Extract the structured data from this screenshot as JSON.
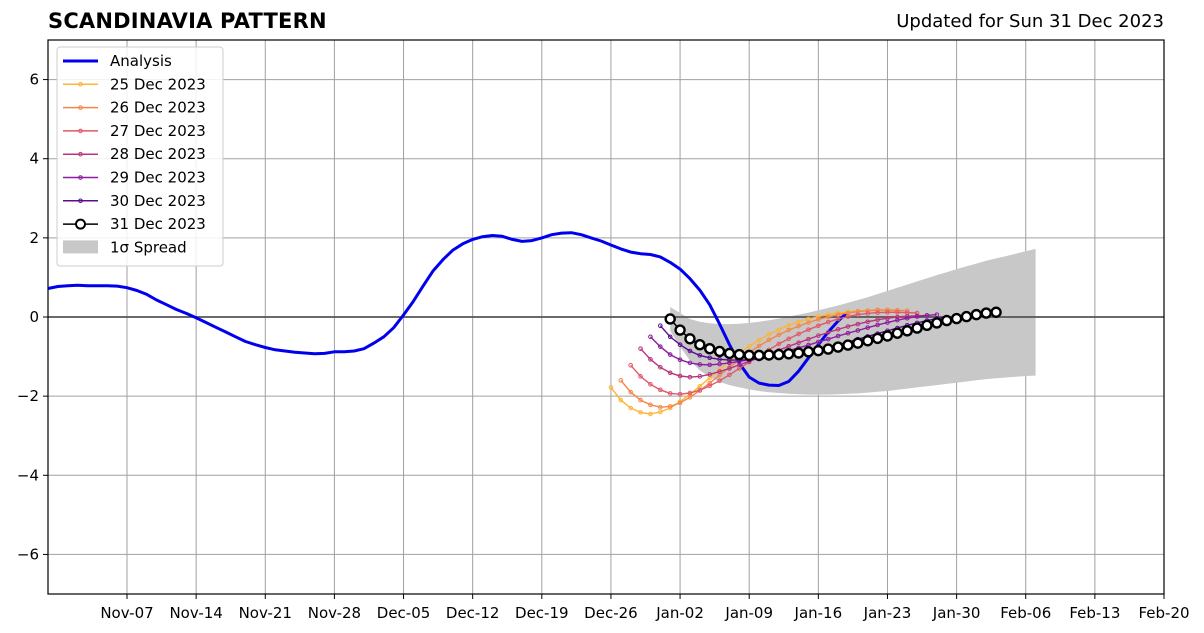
{
  "title": "SCANDINAVIA PATTERN",
  "updated": "Updated for Sun 31 Dec 2023",
  "chart_data": {
    "type": "line",
    "title": "SCANDINAVIA PATTERN",
    "subtitle": "Updated for Sun 31 Dec 2023",
    "x_axis": {
      "type": "date",
      "range": [
        "2023-10-30",
        "2024-02-20"
      ],
      "tick_labels": [
        "Nov-07",
        "Nov-14",
        "Nov-21",
        "Nov-28",
        "Dec-05",
        "Dec-12",
        "Dec-19",
        "Dec-26",
        "Jan-02",
        "Jan-09",
        "Jan-16",
        "Jan-23",
        "Jan-30",
        "Feb-06",
        "Feb-13",
        "Feb-20"
      ],
      "tick_dates": [
        "2023-11-07",
        "2023-11-14",
        "2023-11-21",
        "2023-11-28",
        "2023-12-05",
        "2023-12-12",
        "2023-12-19",
        "2023-12-26",
        "2024-01-02",
        "2024-01-09",
        "2024-01-16",
        "2024-01-23",
        "2024-01-30",
        "2024-02-06",
        "2024-02-13",
        "2024-02-20"
      ]
    },
    "y_axis": {
      "range": [
        -7,
        7
      ],
      "ticks": [
        -6,
        -4,
        -2,
        0,
        2,
        4,
        6
      ],
      "tick_labels": [
        "−6",
        "−4",
        "−2",
        "0",
        "2",
        "4",
        "6"
      ]
    },
    "grid": true,
    "zero_line": true,
    "legend": {
      "placement": "top-left"
    },
    "colors": {
      "analysis": "#0000ee",
      "spread": "#c8c8c8",
      "grid": "#a0a0a0",
      "d25": "#fcb536",
      "d26": "#f48649",
      "d27": "#e0586a",
      "d28": "#b8357c",
      "d29": "#8e1ba0",
      "d30": "#5a0c8c",
      "d31": "#000000"
    },
    "analysis": {
      "name": "Analysis",
      "start": "2023-10-30",
      "step_days": 1,
      "values": [
        0.72,
        0.77,
        0.79,
        0.8,
        0.79,
        0.79,
        0.79,
        0.78,
        0.74,
        0.67,
        0.57,
        0.43,
        0.31,
        0.19,
        0.09,
        -0.02,
        -0.14,
        -0.26,
        -0.38,
        -0.5,
        -0.62,
        -0.7,
        -0.77,
        -0.83,
        -0.86,
        -0.89,
        -0.91,
        -0.93,
        -0.92,
        -0.88,
        -0.88,
        -0.86,
        -0.8,
        -0.66,
        -0.5,
        -0.27,
        0.05,
        0.4,
        0.79,
        1.17,
        1.45,
        1.69,
        1.85,
        1.96,
        2.03,
        2.06,
        2.04,
        1.96,
        1.91,
        1.93,
        2.0,
        2.08,
        2.12,
        2.13,
        2.08,
        2.0,
        1.92,
        1.82,
        1.72,
        1.64,
        1.6,
        1.58,
        1.52,
        1.38,
        1.21,
        0.97,
        0.68,
        0.31,
        -0.18,
        -0.7,
        -1.17,
        -1.52,
        -1.67,
        -1.72,
        -1.73,
        -1.63,
        -1.37,
        -1.03,
        -0.7,
        -0.38,
        -0.1,
        0.13
      ]
    },
    "forecasts": [
      {
        "name": "25 Dec 2023",
        "color": "#fcb536",
        "start": "2023-12-26",
        "values": [
          -1.78,
          -2.1,
          -2.3,
          -2.41,
          -2.45,
          -2.4,
          -2.3,
          -2.14,
          -1.95,
          -1.75,
          -1.54,
          -1.33,
          -1.12,
          -0.92,
          -0.74,
          -0.58,
          -0.44,
          -0.32,
          -0.21,
          -0.12,
          -0.05,
          0.01,
          0.06,
          0.1,
          0.13,
          0.15,
          0.16,
          0.17,
          0.16,
          0.15
        ]
      },
      {
        "name": "26 Dec 2023",
        "color": "#f48649",
        "start": "2023-12-27",
        "values": [
          -1.6,
          -1.9,
          -2.1,
          -2.22,
          -2.28,
          -2.26,
          -2.17,
          -2.03,
          -1.86,
          -1.67,
          -1.47,
          -1.27,
          -1.08,
          -0.9,
          -0.73,
          -0.58,
          -0.45,
          -0.33,
          -0.23,
          -0.14,
          -0.06,
          0.0,
          0.06,
          0.1,
          0.14,
          0.16,
          0.18,
          0.18,
          0.17,
          0.16
        ]
      },
      {
        "name": "27 Dec 2023",
        "color": "#e0586a",
        "start": "2023-12-28",
        "values": [
          -1.22,
          -1.5,
          -1.7,
          -1.84,
          -1.93,
          -1.95,
          -1.92,
          -1.85,
          -1.74,
          -1.61,
          -1.46,
          -1.3,
          -1.14,
          -0.98,
          -0.83,
          -0.68,
          -0.55,
          -0.43,
          -0.32,
          -0.22,
          -0.13,
          -0.05,
          0.01,
          0.06,
          0.09,
          0.11,
          0.12,
          0.12,
          0.11,
          0.1
        ]
      },
      {
        "name": "28 Dec 2023",
        "color": "#b8357c",
        "start": "2023-12-29",
        "values": [
          -0.8,
          -1.07,
          -1.27,
          -1.41,
          -1.49,
          -1.52,
          -1.5,
          -1.45,
          -1.38,
          -1.3,
          -1.21,
          -1.12,
          -1.03,
          -0.93,
          -0.84,
          -0.74,
          -0.65,
          -0.56,
          -0.47,
          -0.39,
          -0.31,
          -0.24,
          -0.18,
          -0.12,
          -0.07,
          -0.03,
          0.0,
          0.02,
          0.03,
          0.04
        ]
      },
      {
        "name": "29 Dec 2023",
        "color": "#8e1ba0",
        "start": "2023-12-30",
        "values": [
          -0.5,
          -0.75,
          -0.95,
          -1.08,
          -1.16,
          -1.2,
          -1.21,
          -1.19,
          -1.16,
          -1.12,
          -1.08,
          -1.03,
          -0.97,
          -0.91,
          -0.85,
          -0.78,
          -0.71,
          -0.63,
          -0.56,
          -0.48,
          -0.41,
          -0.34,
          -0.27,
          -0.2,
          -0.14,
          -0.08,
          -0.03,
          0.01,
          0.04,
          0.06
        ]
      },
      {
        "name": "30 Dec 2023",
        "color": "#5a0c8c",
        "start": "2023-12-31",
        "values": [
          -0.22,
          -0.5,
          -0.7,
          -0.86,
          -0.97,
          -1.03,
          -1.07,
          -1.09,
          -1.09,
          -1.08,
          -1.06,
          -1.03,
          -1.0,
          -0.96,
          -0.92,
          -0.87,
          -0.82,
          -0.76,
          -0.7,
          -0.63,
          -0.56,
          -0.49,
          -0.42,
          -0.35,
          -0.28,
          -0.21,
          -0.15,
          -0.09,
          -0.04,
          0.0
        ]
      },
      {
        "name": "31 Dec 2023",
        "color": "#000000",
        "start": "2024-01-01",
        "markers": "open-circle",
        "values": [
          -0.05,
          -0.33,
          -0.55,
          -0.7,
          -0.8,
          -0.87,
          -0.92,
          -0.95,
          -0.97,
          -0.97,
          -0.96,
          -0.95,
          -0.93,
          -0.91,
          -0.88,
          -0.85,
          -0.81,
          -0.76,
          -0.71,
          -0.66,
          -0.6,
          -0.54,
          -0.48,
          -0.41,
          -0.35,
          -0.28,
          -0.21,
          -0.15,
          -0.09,
          -0.04,
          0.01,
          0.06,
          0.1,
          0.12
        ]
      }
    ],
    "spread": {
      "name": "1σ Spread",
      "start": "2024-01-01",
      "upper": [
        0.25,
        0.1,
        -0.05,
        -0.12,
        -0.16,
        -0.18,
        -0.18,
        -0.17,
        -0.15,
        -0.12,
        -0.08,
        -0.04,
        0.01,
        0.06,
        0.11,
        0.17,
        0.23,
        0.29,
        0.36,
        0.43,
        0.5,
        0.58,
        0.66,
        0.74,
        0.82,
        0.9,
        0.98,
        1.06,
        1.13,
        1.21,
        1.28,
        1.35,
        1.42,
        1.48,
        1.54,
        1.6,
        1.66,
        1.72
      ],
      "lower": [
        -0.35,
        -0.75,
        -1.1,
        -1.35,
        -1.52,
        -1.64,
        -1.72,
        -1.78,
        -1.83,
        -1.87,
        -1.9,
        -1.92,
        -1.94,
        -1.95,
        -1.96,
        -1.96,
        -1.96,
        -1.95,
        -1.94,
        -1.93,
        -1.91,
        -1.89,
        -1.87,
        -1.84,
        -1.81,
        -1.78,
        -1.75,
        -1.72,
        -1.69,
        -1.66,
        -1.63,
        -1.6,
        -1.57,
        -1.55,
        -1.53,
        -1.51,
        -1.49,
        -1.48
      ]
    }
  }
}
